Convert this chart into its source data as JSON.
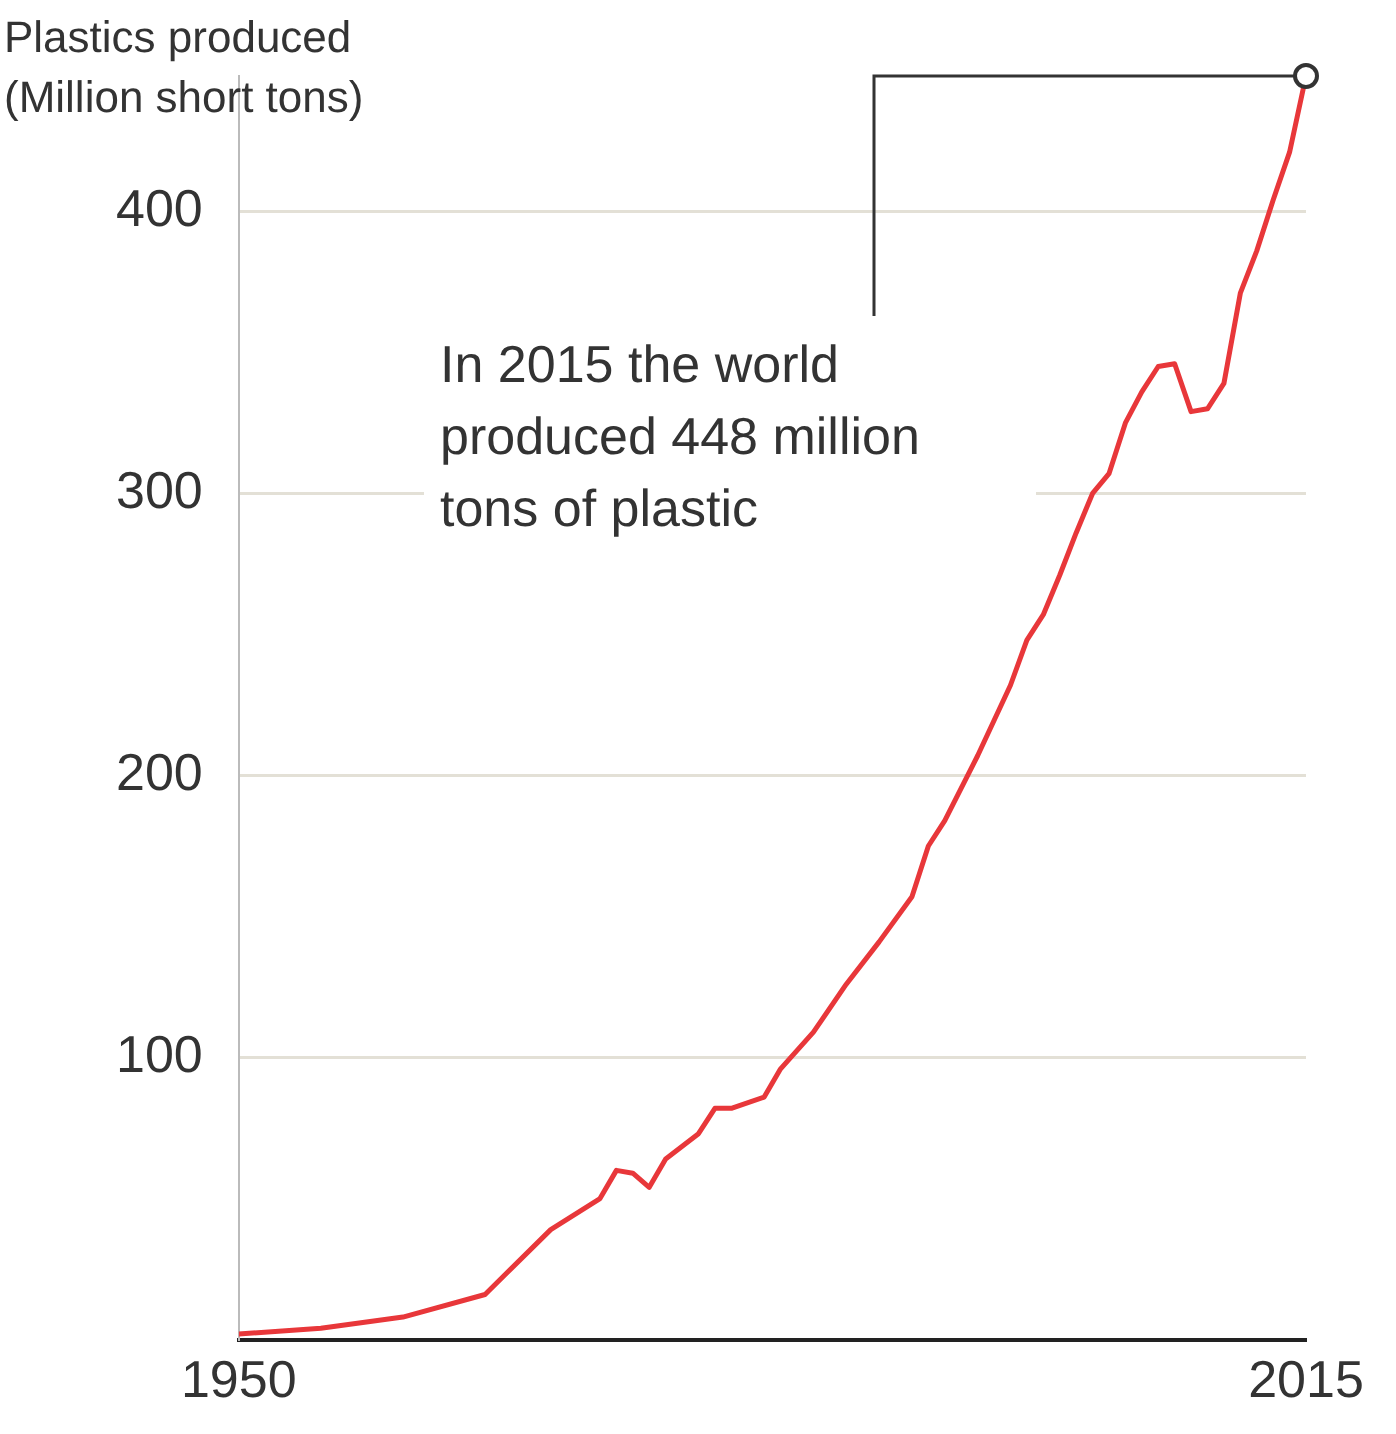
{
  "chart_data": {
    "type": "line",
    "ylabel": "Plastics produced (Million short tons)",
    "x": [
      1950,
      1955,
      1960,
      1965,
      1969,
      1972,
      1973,
      1974,
      1975,
      1976,
      1978,
      1979,
      1980,
      1982,
      1983,
      1985,
      1987,
      1989,
      1991,
      1992,
      1993,
      1995,
      1997,
      1998,
      1999,
      2000,
      2001,
      2002,
      2003,
      2004,
      2005,
      2006,
      2007,
      2008,
      2009,
      2010,
      2011,
      2012,
      2013,
      2014,
      2015
    ],
    "series": [
      {
        "color": "#e8373a",
        "values": [
          2,
          4,
          8,
          16,
          39,
          50,
          60,
          59,
          54,
          64,
          73,
          82,
          82,
          86,
          96,
          109,
          126,
          141,
          157,
          175,
          184,
          207,
          232,
          248,
          257,
          271,
          286,
          300,
          307,
          325,
          336,
          345,
          346,
          329,
          330,
          339,
          371,
          386,
          404,
          421,
          448
        ]
      }
    ],
    "xlim": [
      1950,
      2015
    ],
    "xticks": [
      1950,
      2015
    ],
    "ylim": [
      0,
      448
    ],
    "yticks": [
      100,
      200,
      300,
      400
    ],
    "grid": "y",
    "marker": "none",
    "line_style": "solid",
    "annotations": [
      {
        "text": "In 2015 the world produced 448 million tons of plastic",
        "x": 2015,
        "y": 448
      }
    ]
  }
}
